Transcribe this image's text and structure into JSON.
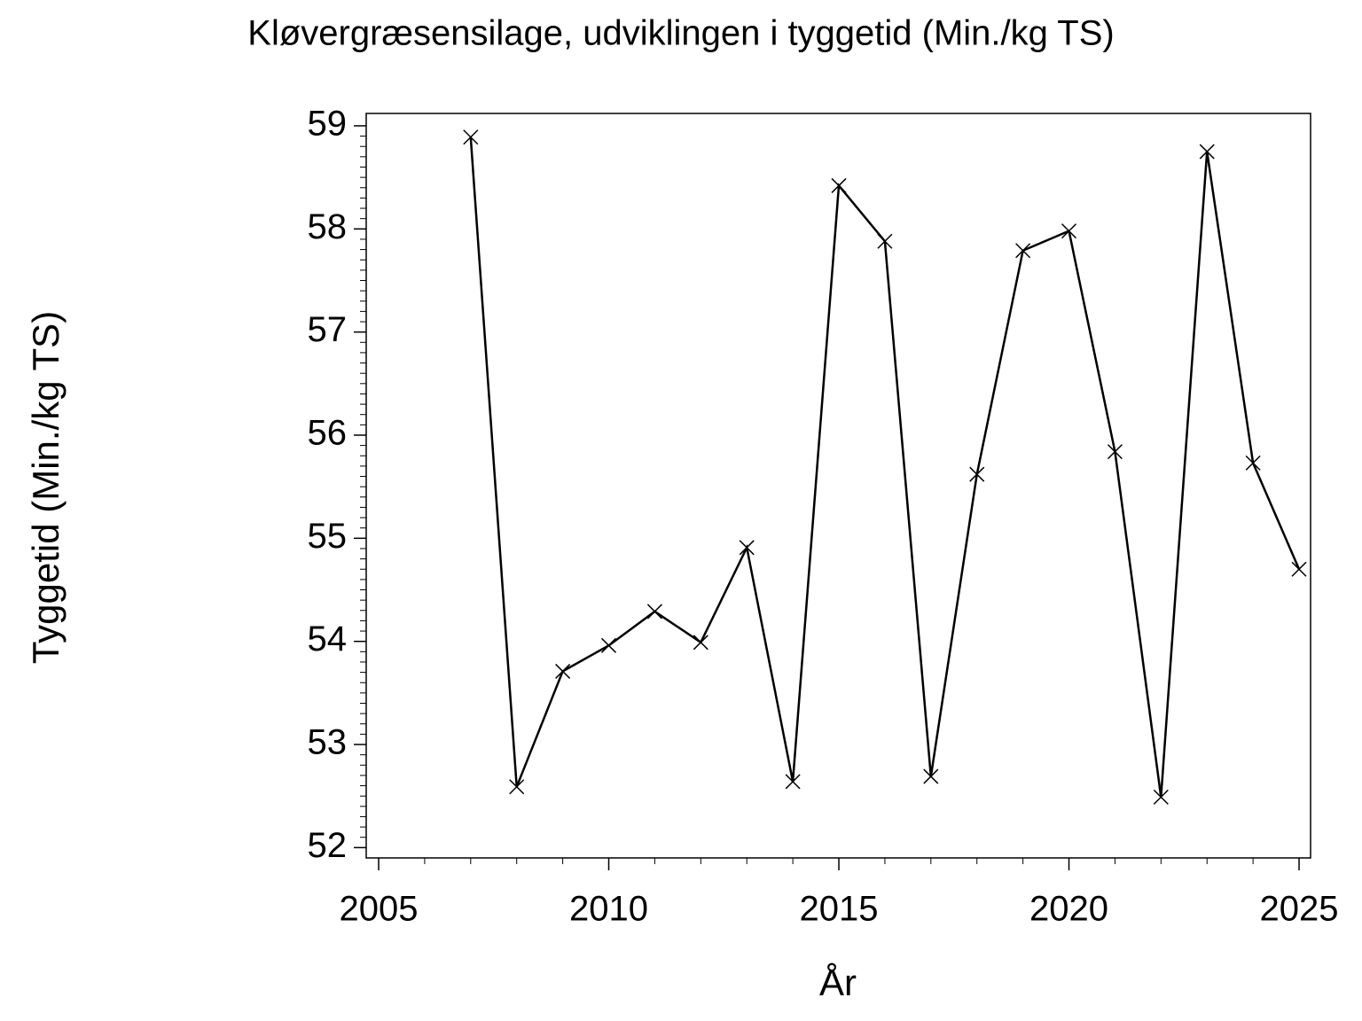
{
  "chart_data": {
    "type": "line",
    "title": "Kløvergræsensilage, udviklingen i tyggetid (Min./kg TS)",
    "x_label": "År",
    "y_label": "Tyggetid (Min./kg TS)",
    "x": [
      2007,
      2008,
      2009,
      2010,
      2011,
      2012,
      2013,
      2014,
      2015,
      2016,
      2017,
      2018,
      2019,
      2020,
      2021,
      2022,
      2023,
      2024,
      2025
    ],
    "series": [
      {
        "color": "#000000",
        "marker": "x",
        "values": [
          58.89,
          52.59,
          53.71,
          53.96,
          54.29,
          53.99,
          54.91,
          52.64,
          58.42,
          57.88,
          52.69,
          55.62,
          57.79,
          57.98,
          55.84,
          52.49,
          58.75,
          55.73,
          54.7
        ]
      }
    ],
    "xlim": [
      2004.73,
      2025.25
    ],
    "xticks": [
      2005,
      2010,
      2015,
      2020,
      2025
    ],
    "ylim": [
      51.9,
      59.12
    ],
    "yticks": [
      52,
      53,
      54,
      55,
      56,
      57,
      58,
      59
    ],
    "grid": false
  }
}
